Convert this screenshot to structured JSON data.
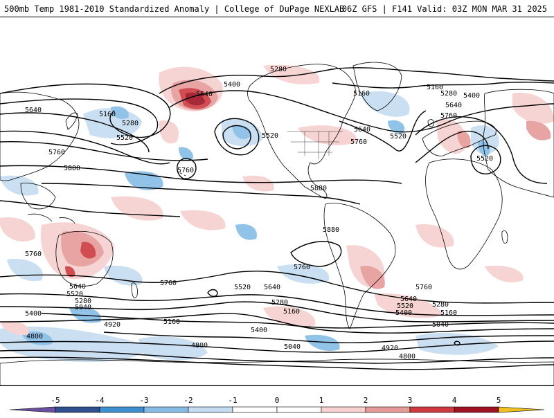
{
  "header": {
    "left_title": "500mb Temp 1981-2010 Standardized Anomaly | College of DuPage NEXLAB",
    "right_title": "06Z GFS | F141 Valid: 03Z MON MAR 31 2025"
  },
  "contour_labels": [
    "5280",
    "5160",
    "5160",
    "5640",
    "5160",
    "5280",
    "5520",
    "5640",
    "5400",
    "5760",
    "5880",
    "5760",
    "5520",
    "5280",
    "5400",
    "5640",
    "5640",
    "5760",
    "5520",
    "5760",
    "5520",
    "5880",
    "5880",
    "5760",
    "5760",
    "5760",
    "5640",
    "5520",
    "5280",
    "5040",
    "5400",
    "5520",
    "5640",
    "5280",
    "5160",
    "4920",
    "5160",
    "4800",
    "4800",
    "5400",
    "5040",
    "5760",
    "5640",
    "5520",
    "5400",
    "5280",
    "5160",
    "5040",
    "4920",
    "4800"
  ],
  "colorbar": {
    "ticks": [
      "-5",
      "-4",
      "-3",
      "-2",
      "-1",
      "0",
      "1",
      "2",
      "3",
      "4",
      "5"
    ],
    "colors": {
      "neg5": "#6a4fa0",
      "neg4": "#2f4f8f",
      "neg3": "#3f8fd0",
      "neg2": "#86bce6",
      "neg1": "#c5dcf0",
      "zero": "#ffffff",
      "pos1": "#f7d0d0",
      "pos2": "#e69a9a",
      "pos3": "#cc3a40",
      "pos4": "#9e1222",
      "pos5": "#f0c020"
    }
  }
}
